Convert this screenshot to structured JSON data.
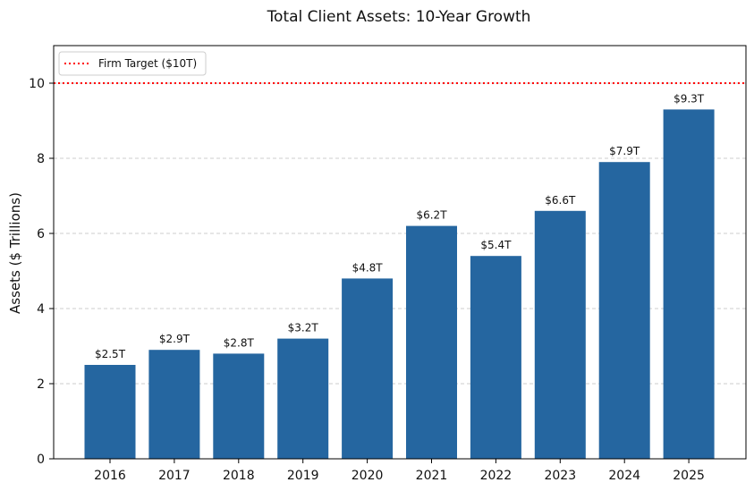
{
  "chart_data": {
    "type": "bar",
    "title": "Total Client Assets: 10-Year Growth",
    "xlabel": "",
    "ylabel": "Assets ($ Trillions)",
    "categories": [
      "2016",
      "2017",
      "2018",
      "2019",
      "2020",
      "2021",
      "2022",
      "2023",
      "2024",
      "2025"
    ],
    "values": [
      2.5,
      2.9,
      2.8,
      3.2,
      4.8,
      6.2,
      5.4,
      6.6,
      7.9,
      9.3
    ],
    "data_labels": [
      "$2.5T",
      "$2.9T",
      "$2.8T",
      "$3.2T",
      "$4.8T",
      "$6.2T",
      "$5.4T",
      "$6.6T",
      "$7.9T",
      "$9.3T"
    ],
    "ylim": [
      0,
      11
    ],
    "yticks": [
      0,
      2,
      4,
      6,
      8,
      10
    ],
    "grid": "horizontal-dashed",
    "bar_color": "#2566a0",
    "reference_line": {
      "label": "Firm Target ($10T)",
      "value": 10,
      "color": "#ff0000",
      "style": "dotted"
    },
    "legend": {
      "placement": "top-left"
    }
  }
}
